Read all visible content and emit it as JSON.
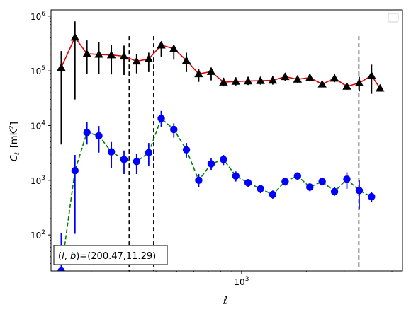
{
  "chart_data": {
    "type": "scatter",
    "x_scale": "log",
    "y_scale": "log",
    "xlim": [
      130,
      5600
    ],
    "ylim": [
      22,
      1300000
    ],
    "xlabel": "ℓ",
    "ylabel": "C_ℓ [mK²]",
    "ylabel_parts": {
      "sym": "C",
      "sub": "ℓ",
      "unit_pre": "[mK",
      "unit_sup": "2",
      "unit_post": "]"
    },
    "x_ticks": [
      {
        "value": 1000,
        "base": "10",
        "exp": "3"
      }
    ],
    "y_ticks": [
      {
        "value": 100,
        "base": "10",
        "exp": "2"
      },
      {
        "value": 1000,
        "base": "10",
        "exp": "3"
      },
      {
        "value": 10000,
        "base": "10",
        "exp": "4"
      },
      {
        "value": 100000,
        "base": "10",
        "exp": "5"
      },
      {
        "value": 1000000,
        "base": "10",
        "exp": "6"
      }
    ],
    "annotation": "(l, b)=(200.47,11.29)",
    "annotation_parts": {
      "pre": "(",
      "l": "l",
      "sep": ", ",
      "b": "b",
      "post": ")=(200.47,11.29)"
    },
    "vlines_x": [
      300,
      390,
      3510
    ],
    "series": [
      {
        "marker": "triangle",
        "marker_color": "#000000",
        "line_color": "#e00000",
        "line_style": "solid",
        "error_color": "#000000",
        "x": [
          145,
          168,
          191,
          217,
          248,
          284,
          325,
          370,
          423,
          484,
          554,
          632,
          722,
          824,
          940,
          1072,
          1224,
          1396,
          1594,
          1820,
          2077,
          2370,
          2705,
          3087,
          3524,
          4021,
          4402
        ],
        "y": [
          115000,
          410000,
          205000,
          200000,
          195000,
          185000,
          150000,
          165000,
          295000,
          255000,
          155000,
          88000,
          97000,
          62000,
          64000,
          65000,
          66000,
          67000,
          78000,
          70000,
          75000,
          57000,
          73000,
          52000,
          60000,
          82000,
          48000
        ],
        "y_lo": [
          4500,
          30000,
          88000,
          88000,
          86000,
          84000,
          90000,
          95000,
          180000,
          160000,
          95000,
          63000,
          67000,
          52000,
          54000,
          55000,
          56000,
          56000,
          65000,
          60000,
          64000,
          50000,
          62000,
          45000,
          42000,
          38000,
          45000
        ],
        "y_hi": [
          230000,
          800000,
          360000,
          340000,
          300000,
          290000,
          205000,
          215000,
          330000,
          300000,
          215000,
          110000,
          115000,
          75000,
          76000,
          78000,
          78000,
          80000,
          92000,
          82000,
          88000,
          65000,
          86000,
          60000,
          78000,
          130000,
          55000
        ]
      },
      {
        "marker": "circle",
        "marker_color": "#0000ff",
        "line_color": "#008000",
        "line_style": "dashed",
        "error_color": "#0000ff",
        "x": [
          145,
          168,
          191,
          217,
          248,
          284,
          325,
          370,
          423,
          484,
          554,
          632,
          722,
          824,
          940,
          1072,
          1224,
          1396,
          1594,
          1820,
          2077,
          2370,
          2705,
          3087,
          3524,
          4021
        ],
        "y": [
          22,
          1500,
          7500,
          6500,
          3300,
          2400,
          2200,
          3200,
          13500,
          8500,
          3600,
          1000,
          2000,
          2400,
          1200,
          900,
          700,
          550,
          950,
          1200,
          750,
          950,
          620,
          1050,
          650,
          500
        ],
        "y_lo": [
          22,
          105,
          4500,
          3200,
          1700,
          1300,
          1300,
          1800,
          9500,
          6000,
          2600,
          750,
          1550,
          1900,
          950,
          750,
          580,
          460,
          800,
          1000,
          630,
          800,
          520,
          700,
          290,
          400
        ],
        "y_hi": [
          110,
          2900,
          11500,
          9800,
          5000,
          3500,
          3000,
          4800,
          18500,
          11000,
          4800,
          1300,
          2500,
          2900,
          1450,
          1050,
          830,
          650,
          1100,
          1400,
          880,
          1100,
          740,
          1400,
          1000,
          600
        ]
      }
    ],
    "legend": "top-right",
    "grid": false
  }
}
